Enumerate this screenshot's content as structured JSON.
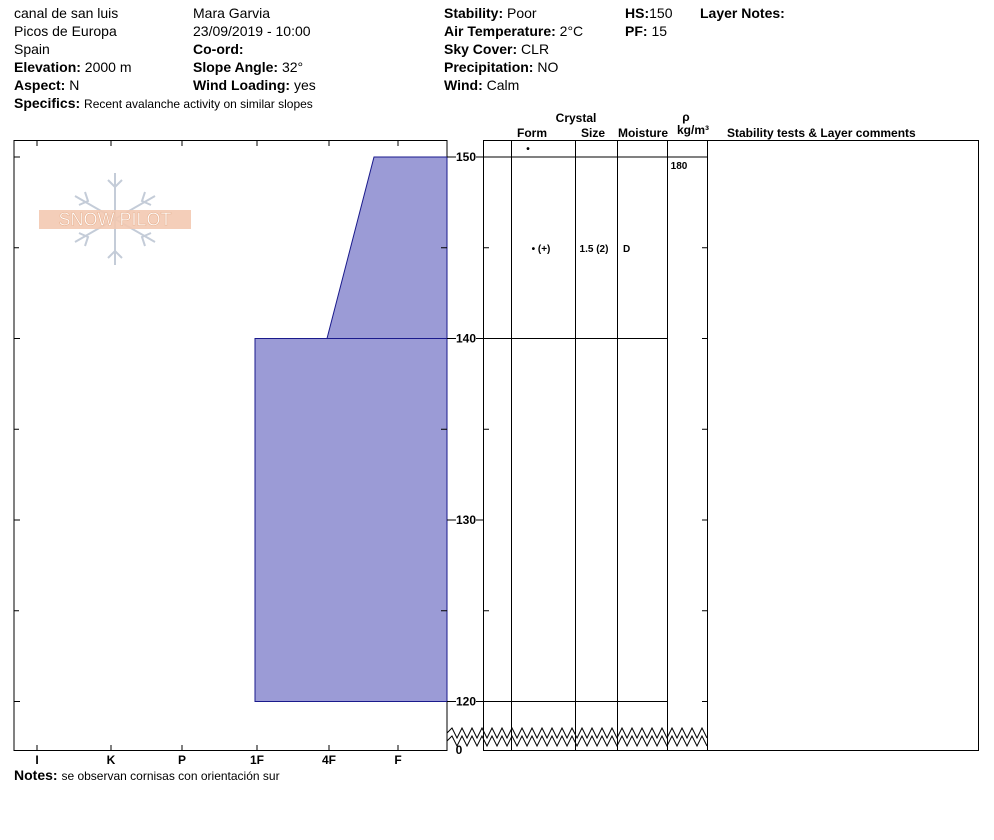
{
  "header": {
    "location": "canal de san luis",
    "region": "Picos de Europa",
    "country": "Spain",
    "elevation_label": "Elevation:",
    "elevation_value": "2000 m",
    "aspect_label": "Aspect:",
    "aspect_value": "N",
    "specifics_label": "Specifics:",
    "specifics_value": "Recent avalanche activity on similar slopes",
    "observer": "Mara Garvia",
    "datetime": "23/09/2019 - 10:00",
    "coord_label": "Co-ord:",
    "slope_label": "Slope Angle:",
    "slope_value": "32°",
    "wind_loading_label": "Wind Loading:",
    "wind_loading_value": "yes",
    "stability_label": "Stability:",
    "stability_value": "Poor",
    "air_temp_label": "Air Temperature:",
    "air_temp_value": "2°C",
    "sky_label": "Sky Cover:",
    "sky_value": "CLR",
    "precip_label": "Precipitation:",
    "precip_value": "NO",
    "wind_label": "Wind:",
    "wind_value": "Calm",
    "hs_label": "HS:",
    "hs_value": "150",
    "pf_label": "PF:",
    "pf_value": "15",
    "layer_notes_label": "Layer Notes:"
  },
  "logo": {
    "text": "SNOW PILOT"
  },
  "notes": {
    "label": "Notes:",
    "value": "se observan cornisas con orientación sur"
  },
  "columns": {
    "crystal": "Crystal",
    "form": "Form",
    "size": "Size",
    "moisture": "Moisture",
    "rho": "ρ",
    "density_unit": "kg/m³",
    "comments": "Stability tests & Layer comments"
  },
  "colors": {
    "hardness_fill": "#9b9bd6",
    "hardness_stroke": "#1a1a8c"
  },
  "chart_data": {
    "type": "area",
    "title": "",
    "xlabel": "",
    "ylabel": "",
    "x_categories": [
      "I",
      "K",
      "P",
      "1F",
      "4F",
      "F"
    ],
    "ylim": [
      0,
      150
    ],
    "y_ticks": [
      "150",
      "140",
      "130",
      "120",
      "0"
    ],
    "axis_break": "between 120 and 0",
    "hardness_profile": [
      {
        "top": 150,
        "bottom": 140,
        "hardness_top": "F-",
        "hardness_bottom": "4F"
      },
      {
        "top": 140,
        "bottom": 120,
        "hardness": "1F-"
      }
    ],
    "layers": [
      {
        "top": 150,
        "bottom": 140,
        "form": "• (+)",
        "size": "1.5 (2)",
        "moisture": "D",
        "density": "180"
      },
      {
        "top": 140,
        "bottom": 120,
        "form": "",
        "size": "",
        "moisture": "",
        "density": ""
      }
    ],
    "surface_form": "•"
  }
}
